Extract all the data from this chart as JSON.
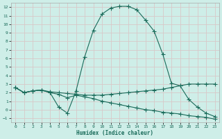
{
  "xlabel": "Humidex (Indice chaleur)",
  "bg_color": "#ceeee8",
  "grid_color": "#d8c8c8",
  "line_color": "#1a6b5a",
  "xlim": [
    -0.5,
    23.5
  ],
  "ylim": [
    -1.5,
    12.5
  ],
  "xticks": [
    0,
    1,
    2,
    3,
    4,
    5,
    6,
    7,
    8,
    9,
    10,
    11,
    12,
    13,
    14,
    15,
    16,
    17,
    18,
    19,
    20,
    21,
    22,
    23
  ],
  "yticks": [
    -1,
    0,
    1,
    2,
    3,
    4,
    5,
    6,
    7,
    8,
    9,
    10,
    11,
    12
  ],
  "curve1_x": [
    0,
    1,
    2,
    3,
    4,
    5,
    6,
    7,
    8,
    9,
    10,
    11,
    12,
    13,
    14,
    15,
    16,
    17,
    18,
    19,
    20,
    21,
    22,
    23
  ],
  "curve1_y": [
    2.6,
    2.0,
    2.2,
    2.3,
    2.0,
    0.3,
    -0.4,
    2.2,
    6.2,
    9.3,
    11.2,
    11.9,
    12.1,
    12.1,
    11.7,
    10.5,
    9.2,
    6.5,
    3.1,
    2.8,
    1.2,
    0.3,
    -0.4,
    -0.8
  ],
  "curve2_x": [
    0,
    1,
    2,
    3,
    4,
    5,
    6,
    7,
    8,
    9,
    10,
    11,
    12,
    13,
    14,
    15,
    16,
    17,
    18,
    19,
    20,
    21,
    22,
    23
  ],
  "curve2_y": [
    2.6,
    2.0,
    2.2,
    2.3,
    2.1,
    2.0,
    1.9,
    1.8,
    1.7,
    1.7,
    1.7,
    1.8,
    1.9,
    2.0,
    2.1,
    2.2,
    2.3,
    2.4,
    2.6,
    2.8,
    3.0,
    3.0,
    3.0,
    3.0
  ],
  "curve3_x": [
    0,
    1,
    2,
    3,
    4,
    5,
    6,
    7,
    8,
    9,
    10,
    11,
    12,
    13,
    14,
    15,
    16,
    17,
    18,
    19,
    20,
    21,
    22,
    23
  ],
  "curve3_y": [
    2.6,
    2.0,
    2.2,
    2.3,
    2.0,
    1.8,
    1.4,
    1.7,
    1.5,
    1.3,
    1.0,
    0.8,
    0.6,
    0.4,
    0.2,
    0.0,
    -0.1,
    -0.3,
    -0.4,
    -0.5,
    -0.7,
    -0.8,
    -0.9,
    -1.1
  ]
}
